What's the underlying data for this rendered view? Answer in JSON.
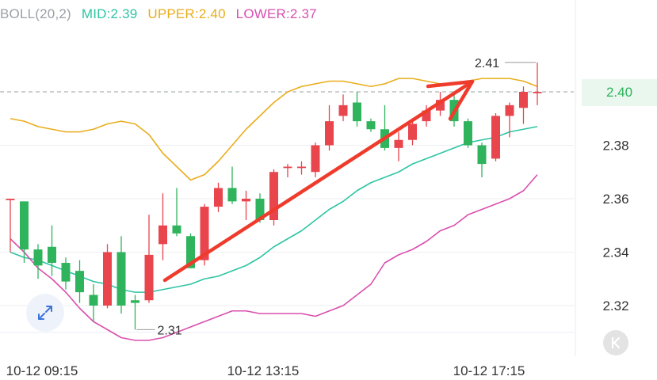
{
  "indicator": {
    "name": "BOLL(20,2)",
    "mid_label": "MID:2.39",
    "upper_label": "UPPER:2.40",
    "lower_label": "LOWER:2.37"
  },
  "colors": {
    "mid": "#2ec4a4",
    "upper": "#e9ad1c",
    "lower": "#d94fae",
    "up_candle": "#e8454d",
    "down_candle": "#2fb35c",
    "annotation_arrow": "#ef3b2c",
    "grid": "#eceef2",
    "axis_text": "#333333"
  },
  "current_price": "2.40",
  "annotations": {
    "high_label": "2.41",
    "low_label": "2.31"
  },
  "icons": {
    "expand": "expand-arrows-icon",
    "back": "chevron-left-icon"
  },
  "chart_data": {
    "type": "candlestick",
    "title": "",
    "y_ticks": [
      "2.40",
      "2.38",
      "2.36",
      "2.34",
      "2.32"
    ],
    "x_ticks": [
      "10-12 09:15",
      "10-12 13:15",
      "10-12 17:15"
    ],
    "ylim": [
      2.3,
      2.42
    ],
    "grid": true,
    "price_line": 2.4,
    "candles": [
      {
        "open": 2.36,
        "close": 2.36,
        "high": 2.36,
        "low": 2.34
      },
      {
        "open": 2.359,
        "close": 2.341,
        "high": 2.359,
        "low": 2.336
      },
      {
        "open": 2.341,
        "close": 2.335,
        "high": 2.343,
        "low": 2.33
      },
      {
        "open": 2.342,
        "close": 2.336,
        "high": 2.35,
        "low": 2.331
      },
      {
        "open": 2.336,
        "close": 2.329,
        "high": 2.338,
        "low": 2.326
      },
      {
        "open": 2.333,
        "close": 2.325,
        "high": 2.337,
        "low": 2.321
      },
      {
        "open": 2.324,
        "close": 2.32,
        "high": 2.328,
        "low": 2.314
      },
      {
        "open": 2.32,
        "close": 2.34,
        "high": 2.343,
        "low": 2.319
      },
      {
        "open": 2.34,
        "close": 2.32,
        "high": 2.346,
        "low": 2.317
      },
      {
        "open": 2.322,
        "close": 2.321,
        "high": 2.324,
        "low": 2.311
      },
      {
        "open": 2.322,
        "close": 2.339,
        "high": 2.354,
        "low": 2.321
      },
      {
        "open": 2.343,
        "close": 2.35,
        "high": 2.362,
        "low": 2.337
      },
      {
        "open": 2.35,
        "close": 2.347,
        "high": 2.364,
        "low": 2.346
      },
      {
        "open": 2.346,
        "close": 2.334,
        "high": 2.347,
        "low": 2.334
      },
      {
        "open": 2.337,
        "close": 2.357,
        "high": 2.358,
        "low": 2.335
      },
      {
        "open": 2.357,
        "close": 2.364,
        "high": 2.366,
        "low": 2.355
      },
      {
        "open": 2.364,
        "close": 2.359,
        "high": 2.372,
        "low": 2.358
      },
      {
        "open": 2.359,
        "close": 2.36,
        "high": 2.363,
        "low": 2.352
      },
      {
        "open": 2.36,
        "close": 2.352,
        "high": 2.362,
        "low": 2.351
      },
      {
        "open": 2.352,
        "close": 2.37,
        "high": 2.371,
        "low": 2.35
      },
      {
        "open": 2.372,
        "close": 2.372,
        "high": 2.373,
        "low": 2.368
      },
      {
        "open": 2.372,
        "close": 2.372,
        "high": 2.374,
        "low": 2.369
      },
      {
        "open": 2.37,
        "close": 2.38,
        "high": 2.381,
        "low": 2.368
      },
      {
        "open": 2.38,
        "close": 2.389,
        "high": 2.395,
        "low": 2.378
      },
      {
        "open": 2.391,
        "close": 2.395,
        "high": 2.399,
        "low": 2.389
      },
      {
        "open": 2.396,
        "close": 2.389,
        "high": 2.4,
        "low": 2.387
      },
      {
        "open": 2.389,
        "close": 2.386,
        "high": 2.39,
        "low": 2.385
      },
      {
        "open": 2.386,
        "close": 2.379,
        "high": 2.395,
        "low": 2.378
      },
      {
        "open": 2.379,
        "close": 2.382,
        "high": 2.385,
        "low": 2.374
      },
      {
        "open": 2.382,
        "close": 2.388,
        "high": 2.39,
        "low": 2.38
      },
      {
        "open": 2.389,
        "close": 2.393,
        "high": 2.395,
        "low": 2.387
      },
      {
        "open": 2.393,
        "close": 2.397,
        "high": 2.4,
        "low": 2.391
      },
      {
        "open": 2.397,
        "close": 2.389,
        "high": 2.399,
        "low": 2.387
      },
      {
        "open": 2.389,
        "close": 2.38,
        "high": 2.39,
        "low": 2.379
      },
      {
        "open": 2.38,
        "close": 2.373,
        "high": 2.381,
        "low": 2.368
      },
      {
        "open": 2.375,
        "close": 2.391,
        "high": 2.392,
        "low": 2.374
      },
      {
        "open": 2.391,
        "close": 2.395,
        "high": 2.396,
        "low": 2.383
      },
      {
        "open": 2.394,
        "close": 2.4,
        "high": 2.402,
        "low": 2.388
      },
      {
        "open": 2.4,
        "close": 2.4,
        "high": 2.411,
        "low": 2.395
      }
    ],
    "series": [
      {
        "name": "MID",
        "values": [
          2.34,
          2.338,
          2.337,
          2.335,
          2.333,
          2.331,
          2.329,
          2.328,
          2.326,
          2.325,
          2.325,
          2.326,
          2.327,
          2.328,
          2.33,
          2.331,
          2.333,
          2.335,
          2.338,
          2.342,
          2.345,
          2.348,
          2.352,
          2.356,
          2.359,
          2.363,
          2.366,
          2.368,
          2.37,
          2.373,
          2.375,
          2.377,
          2.379,
          2.381,
          2.382,
          2.383,
          2.385,
          2.386,
          2.387
        ]
      },
      {
        "name": "UPPER",
        "values": [
          2.39,
          2.389,
          2.387,
          2.386,
          2.385,
          2.385,
          2.386,
          2.388,
          2.389,
          2.388,
          2.384,
          2.377,
          2.372,
          2.367,
          2.369,
          2.374,
          2.38,
          2.386,
          2.391,
          2.396,
          2.4,
          2.402,
          2.403,
          2.404,
          2.404,
          2.403,
          2.402,
          2.403,
          2.405,
          2.405,
          2.404,
          2.403,
          2.403,
          2.404,
          2.405,
          2.405,
          2.405,
          2.404,
          2.402
        ]
      },
      {
        "name": "LOWER",
        "values": [
          2.345,
          2.34,
          2.334,
          2.33,
          2.325,
          2.319,
          2.314,
          2.311,
          2.308,
          2.307,
          2.307,
          2.308,
          2.31,
          2.312,
          2.314,
          2.316,
          2.318,
          2.318,
          2.317,
          2.317,
          2.317,
          2.317,
          2.316,
          2.318,
          2.32,
          2.324,
          2.328,
          2.336,
          2.339,
          2.341,
          2.344,
          2.348,
          2.35,
          2.354,
          2.356,
          2.358,
          2.36,
          2.363,
          2.369
        ]
      }
    ]
  }
}
